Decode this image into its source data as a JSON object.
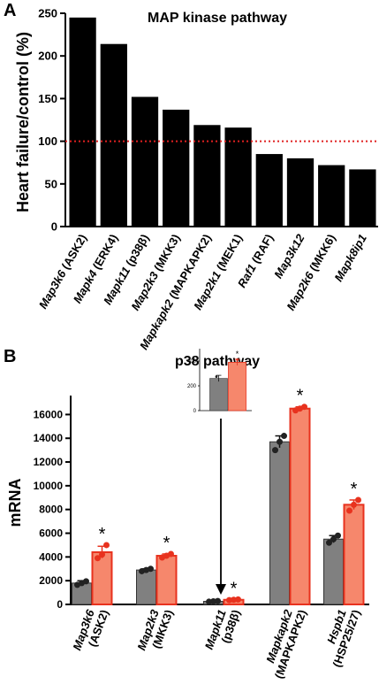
{
  "panels": {
    "a": {
      "letter": "A"
    },
    "b": {
      "letter": "B"
    }
  },
  "chart_data": [
    {
      "type": "bar",
      "title": "MAP kinase pathway",
      "xlabel": "",
      "ylabel": "Heart failure/control (%)",
      "ylim": [
        0,
        250
      ],
      "yticks": [
        0,
        50,
        100,
        150,
        200,
        250
      ],
      "reference_line": {
        "value": 100,
        "style": "dotted",
        "color": "#e02020"
      },
      "bar_color": "#000000",
      "categories": [
        {
          "gene": "Map3k6",
          "alias": " (ASK2)"
        },
        {
          "gene": "Mapk4",
          "alias": " (ERK4)"
        },
        {
          "gene": "Mapk11",
          "alias": " (p38β)"
        },
        {
          "gene": "Map2k3",
          "alias": " (MKK3)"
        },
        {
          "gene": "Mapkapk2",
          "alias": " (MAPKAPK2)"
        },
        {
          "gene": "Map2k1",
          "alias": " (MEK1)"
        },
        {
          "gene": "Raf1",
          "alias": " (RAF)"
        },
        {
          "gene": "Map3k12",
          "alias": ""
        },
        {
          "gene": "Map2k6",
          "alias": " (MKK6)"
        },
        {
          "gene": "Mapk8ip1",
          "alias": ""
        }
      ],
      "values": [
        245,
        214,
        152,
        137,
        119,
        116,
        85,
        80,
        72,
        67
      ]
    },
    {
      "type": "bar",
      "title": "p38 pathway",
      "xlabel": "",
      "ylabel": "mRNA",
      "ylim": [
        0,
        17000
      ],
      "yticks": [
        0,
        2000,
        4000,
        6000,
        8000,
        10000,
        12000,
        14000,
        16000
      ],
      "colors": {
        "control": "#808080",
        "heart_failure": "#f6876c",
        "heart_failure_edge": "#e8321e",
        "points_control": "#222222",
        "points_hf": "#e8321e"
      },
      "groups": [
        {
          "gene": "Map3k6",
          "alias": "(ASK2)",
          "control": 1800,
          "control_err": 200,
          "control_points": [
            1650,
            1800,
            1950
          ],
          "hf": 4400,
          "hf_err": 500,
          "hf_points": [
            3900,
            4200,
            5000
          ],
          "significant": "*"
        },
        {
          "gene": "Map2k3",
          "alias": "(MKK3)",
          "control": 2900,
          "control_err": 100,
          "control_points": [
            2800,
            2900,
            3000
          ],
          "hf": 4100,
          "hf_err": 150,
          "hf_points": [
            3950,
            4100,
            4250
          ],
          "significant": "*"
        },
        {
          "gene": "Mapk11",
          "alias": "(p38β)",
          "control": 260,
          "control_err": 25,
          "control_points": [
            230,
            260,
            290
          ],
          "hf": 390,
          "hf_err": 25,
          "hf_points": [
            365,
            390,
            420
          ],
          "significant": "*"
        },
        {
          "gene": "Mapkapk2",
          "alias": "(MAPKAPK2)",
          "control": 13700,
          "control_err": 500,
          "control_points": [
            13000,
            13700,
            14200
          ],
          "hf": 16500,
          "hf_err": 150,
          "hf_points": [
            16350,
            16500,
            16650
          ],
          "significant": "*"
        },
        {
          "gene": "Hspb1",
          "alias": "(HSP25/27)",
          "control": 5500,
          "control_err": 300,
          "control_points": [
            5200,
            5500,
            5800
          ],
          "hf": 8400,
          "hf_err": 400,
          "hf_points": [
            7900,
            8400,
            8800
          ],
          "significant": "*"
        }
      ],
      "inset": {
        "gene": "Mapk11",
        "ylim": [
          0,
          500
        ],
        "yticks": [
          0,
          200,
          400
        ],
        "control": 260,
        "control_err": 25,
        "hf": 390,
        "hf_err": 25,
        "significant": "*"
      }
    }
  ]
}
